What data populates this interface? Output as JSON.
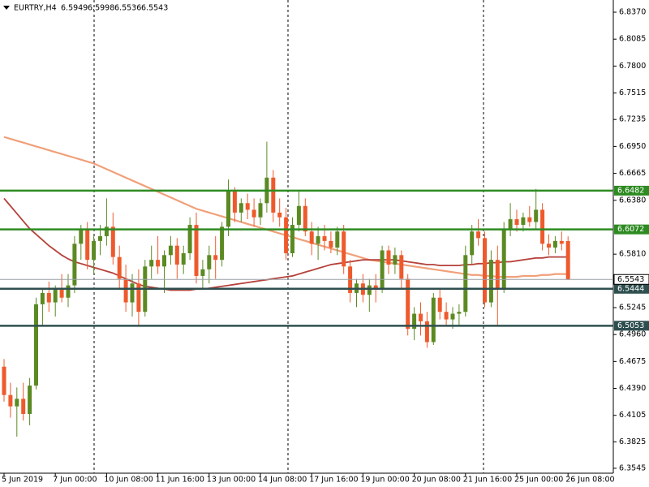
{
  "chart_data": {
    "type": "candlestick",
    "title": "EURTRY,H4",
    "categories": [
      "5 Jun 2019",
      null,
      null,
      null,
      null,
      null,
      null,
      null,
      "7 Jun 00:00",
      null,
      null,
      null,
      null,
      null,
      null,
      null,
      "10 Jun 08:00",
      null,
      null,
      null,
      null,
      null,
      null,
      null,
      "11 Jun 16:00",
      null,
      null,
      null,
      null,
      null,
      null,
      null,
      "13 Jun 00:00",
      null,
      null,
      null,
      null,
      null,
      null,
      null,
      "14 Jun 08:00",
      null,
      null,
      null,
      null,
      null,
      null,
      null,
      "17 Jun 16:00",
      null,
      null,
      null,
      null,
      null,
      null,
      null,
      "19 Jun 00:00",
      null,
      null,
      null,
      null,
      null,
      null,
      null,
      "20 Jun 08:00",
      null,
      null,
      null,
      null,
      null,
      null,
      null,
      "21 Jun 16:00",
      null,
      null,
      null,
      null,
      null,
      null,
      null,
      "25 Jun 00:00",
      null,
      null,
      null,
      null,
      null,
      null,
      null,
      "26 Jun 08:00"
    ],
    "open": [
      6.462,
      6.432,
      6.42,
      6.428,
      6.412,
      6.442,
      6.528,
      6.54,
      6.53,
      6.545,
      6.535,
      6.548,
      6.592,
      6.608,
      6.575,
      6.595,
      6.6,
      6.61,
      6.578,
      6.555,
      6.53,
      6.55,
      6.52,
      6.568,
      6.575,
      6.568,
      6.58,
      6.59,
      6.57,
      6.582,
      6.612,
      6.558,
      6.565,
      6.58,
      6.575,
      6.61,
      6.648,
      6.625,
      6.635,
      6.628,
      6.62,
      6.635,
      6.662,
      6.625,
      6.62,
      6.582,
      6.612,
      6.632,
      6.605,
      6.592,
      6.6,
      6.595,
      6.588,
      6.605,
      6.568,
      6.54,
      6.55,
      6.538,
      6.548,
      6.545,
      6.585,
      6.57,
      6.58,
      6.555,
      6.502,
      6.518,
      6.51,
      6.488,
      6.535,
      6.52,
      6.512,
      6.518,
      6.52,
      6.58,
      6.605,
      6.598,
      6.53,
      6.575,
      6.545,
      6.608,
      6.618,
      6.612,
      6.62,
      6.615,
      6.628,
      6.592,
      6.588,
      6.595,
      6.5949
    ],
    "high": [
      6.47,
      6.445,
      6.44,
      6.445,
      6.45,
      6.535,
      6.545,
      6.552,
      6.548,
      6.56,
      6.56,
      6.6,
      6.612,
      6.615,
      6.6,
      6.612,
      6.64,
      6.625,
      6.59,
      6.57,
      6.56,
      6.565,
      6.575,
      6.59,
      6.6,
      6.585,
      6.6,
      6.598,
      6.59,
      6.62,
      6.625,
      6.575,
      6.59,
      6.6,
      6.615,
      6.66,
      6.652,
      6.64,
      6.645,
      6.64,
      6.64,
      6.7,
      6.67,
      6.64,
      6.63,
      6.62,
      6.648,
      6.64,
      6.615,
      6.61,
      6.612,
      6.605,
      6.61,
      6.612,
      6.575,
      6.555,
      6.56,
      6.555,
      6.56,
      6.59,
      6.59,
      6.588,
      6.585,
      6.56,
      6.525,
      6.53,
      6.52,
      6.54,
      6.545,
      6.53,
      6.525,
      6.528,
      6.59,
      6.612,
      6.618,
      6.605,
      6.585,
      6.59,
      6.615,
      6.635,
      6.628,
      6.625,
      6.632,
      6.65,
      6.635,
      6.602,
      6.6,
      6.605,
      6.5998
    ],
    "low": [
      6.425,
      6.408,
      6.388,
      6.405,
      6.4,
      6.438,
      6.505,
      6.52,
      6.515,
      6.53,
      6.525,
      6.54,
      6.575,
      6.565,
      6.56,
      6.58,
      6.59,
      6.57,
      6.545,
      6.52,
      6.515,
      6.505,
      6.515,
      6.555,
      6.56,
      6.54,
      6.57,
      6.555,
      6.56,
      6.575,
      6.55,
      6.545,
      6.55,
      6.555,
      6.568,
      6.6,
      6.615,
      6.615,
      6.618,
      6.61,
      6.612,
      6.625,
      6.615,
      6.61,
      6.575,
      6.578,
      6.605,
      6.6,
      6.58,
      6.575,
      6.585,
      6.582,
      6.58,
      6.56,
      6.53,
      6.525,
      6.53,
      6.52,
      6.53,
      6.54,
      6.56,
      6.56,
      6.545,
      6.495,
      6.49,
      6.495,
      6.482,
      6.485,
      6.512,
      6.505,
      6.502,
      6.505,
      6.515,
      6.57,
      6.59,
      6.525,
      6.525,
      6.505,
      6.54,
      6.6,
      6.605,
      6.605,
      6.61,
      6.608,
      6.585,
      6.58,
      6.582,
      6.585,
      6.5536
    ],
    "close": [
      6.432,
      6.42,
      6.428,
      6.412,
      6.442,
      6.528,
      6.54,
      6.53,
      6.545,
      6.535,
      6.548,
      6.592,
      6.608,
      6.575,
      6.595,
      6.6,
      6.61,
      6.578,
      6.555,
      6.53,
      6.55,
      6.52,
      6.568,
      6.575,
      6.568,
      6.58,
      6.59,
      6.57,
      6.582,
      6.612,
      6.558,
      6.565,
      6.58,
      6.575,
      6.61,
      6.648,
      6.625,
      6.635,
      6.628,
      6.62,
      6.635,
      6.662,
      6.625,
      6.62,
      6.582,
      6.612,
      6.632,
      6.605,
      6.592,
      6.6,
      6.595,
      6.588,
      6.605,
      6.568,
      6.54,
      6.55,
      6.538,
      6.548,
      6.545,
      6.585,
      6.57,
      6.58,
      6.555,
      6.502,
      6.518,
      6.51,
      6.488,
      6.535,
      6.52,
      6.512,
      6.518,
      6.52,
      6.58,
      6.605,
      6.598,
      6.53,
      6.575,
      6.545,
      6.608,
      6.618,
      6.612,
      6.62,
      6.615,
      6.628,
      6.592,
      6.588,
      6.595,
      6.592,
      6.5543
    ],
    "up_color": "#5b8a23",
    "down_color": "#ee5a2c",
    "moving_averages": [
      {
        "color": "#f0a07a",
        "values": [
          6.705,
          6.703,
          6.701,
          6.699,
          6.697,
          6.695,
          6.693,
          6.691,
          6.689,
          6.687,
          6.685,
          6.683,
          6.681,
          6.679,
          6.677,
          6.674,
          6.671,
          6.668,
          6.665,
          6.662,
          6.659,
          6.656,
          6.653,
          6.65,
          6.647,
          6.644,
          6.641,
          6.638,
          6.635,
          6.632,
          6.629,
          6.627,
          6.625,
          6.623,
          6.621,
          6.619,
          6.617,
          6.615,
          6.613,
          6.611,
          6.609,
          6.607,
          6.605,
          6.603,
          6.601,
          6.599,
          6.597,
          6.595,
          6.593,
          6.591,
          6.589,
          6.587,
          6.585,
          6.583,
          6.581,
          6.579,
          6.577,
          6.575,
          6.574,
          6.573,
          6.572,
          6.571,
          6.57,
          6.569,
          6.568,
          6.567,
          6.566,
          6.565,
          6.564,
          6.563,
          6.562,
          6.561,
          6.56,
          6.559,
          6.559,
          6.558,
          6.558,
          6.557,
          6.557,
          6.557,
          6.557,
          6.558,
          6.558,
          6.558,
          6.559,
          6.559,
          6.56,
          6.56,
          6.56
        ]
      },
      {
        "color": "#b5413a",
        "values": [
          6.64,
          6.632,
          6.624,
          6.616,
          6.608,
          6.602,
          6.596,
          6.59,
          6.585,
          6.58,
          6.576,
          6.573,
          6.571,
          6.569,
          6.567,
          6.565,
          6.563,
          6.561,
          6.558,
          6.555,
          6.552,
          6.549,
          6.547,
          6.546,
          6.545,
          6.544,
          6.543,
          6.543,
          6.543,
          6.543,
          6.544,
          6.544,
          6.545,
          6.546,
          6.547,
          6.548,
          6.549,
          6.55,
          6.551,
          6.552,
          6.553,
          6.554,
          6.555,
          6.556,
          6.557,
          6.558,
          6.56,
          6.562,
          6.564,
          6.566,
          6.568,
          6.57,
          6.571,
          6.572,
          6.573,
          6.574,
          6.575,
          6.575,
          6.575,
          6.575,
          6.575,
          6.575,
          6.574,
          6.573,
          6.572,
          6.571,
          6.57,
          6.57,
          6.569,
          6.569,
          6.569,
          6.569,
          6.57,
          6.57,
          6.571,
          6.571,
          6.572,
          6.572,
          6.573,
          6.573,
          6.574,
          6.575,
          6.576,
          6.577,
          6.577,
          6.578,
          6.578,
          6.578,
          6.578
        ]
      }
    ],
    "levels": [
      {
        "value": 6.6482,
        "color": "#2e8b22"
      },
      {
        "value": 6.6072,
        "color": "#2e8b22"
      },
      {
        "value": 6.5444,
        "color": "#2f4f4f"
      },
      {
        "value": 6.5053,
        "color": "#2f4f4f"
      }
    ],
    "last_price_color": "#9aa0a6",
    "ylim": [
      6.3493,
      6.8499
    ],
    "yticks": [
      {
        "value": 6.837,
        "label": "6.8370"
      },
      6.8085,
      {
        "value": 6.78,
        "label": "6.7800"
      },
      6.7515,
      6.7235,
      {
        "value": 6.695,
        "label": "6.6950"
      },
      6.6665,
      {
        "value": 6.638,
        "label": "6.6380"
      },
      {
        "value": 6.581,
        "label": "6.5810"
      },
      6.5245,
      {
        "value": 6.496,
        "label": "6.4960"
      },
      6.4675,
      {
        "value": 6.439,
        "label": "6.4390"
      },
      6.4105,
      6.3825,
      6.3545
    ]
  }
}
